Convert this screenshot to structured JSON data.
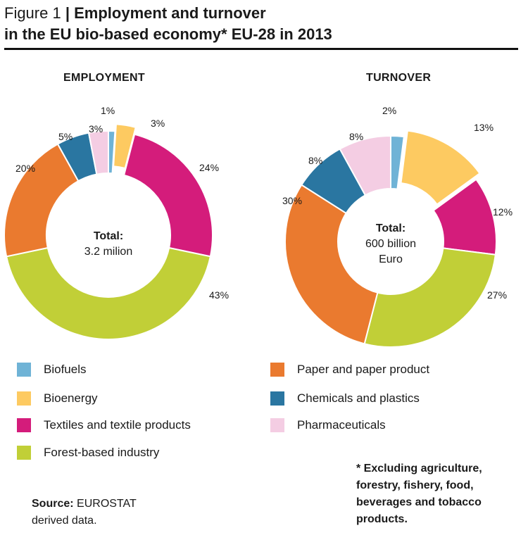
{
  "header": {
    "figure_label": "Figure 1",
    "separator": "|",
    "title_part1": "Employment and turnover",
    "title_part2": "in the EU bio-based economy* EU-28 in 2013"
  },
  "colors": {
    "Biofuels": "#6fb3d6",
    "Bioenergy": "#fdca61",
    "Textiles and textile products": "#d41c7b",
    "Forest-based industry": "#c1cf37",
    "Paper and paper product": "#ea7a2f",
    "Chemicals and plastics": "#2a76a1",
    "Pharmaceuticals": "#f4cde3"
  },
  "chart_data": [
    {
      "type": "pie",
      "title": "EMPLOYMENT",
      "center_label": "Total:",
      "center_value": "3.2 milion",
      "categories": [
        "Biofuels",
        "Bioenergy",
        "Textiles and textile products",
        "Forest-based industry",
        "Paper and paper product",
        "Chemicals and plastics",
        "Pharmaceuticals"
      ],
      "values": [
        1,
        3,
        24,
        43,
        20,
        5,
        3
      ],
      "labels": [
        "1%",
        "3%",
        "24%",
        "43%",
        "20%",
        "5%",
        "3%"
      ],
      "exploded": [
        "Bioenergy"
      ]
    },
    {
      "type": "pie",
      "title": "TURNOVER",
      "center_label": "Total:",
      "center_value": "600 billion",
      "center_value2": "Euro",
      "categories": [
        "Biofuels",
        "Bioenergy",
        "Textiles and textile products",
        "Forest-based industry",
        "Paper and paper product",
        "Chemicals and plastics",
        "Pharmaceuticals"
      ],
      "values": [
        2,
        13,
        12,
        27,
        30,
        8,
        8
      ],
      "labels": [
        "2%",
        "13%",
        "12%",
        "27%",
        "30%",
        "8%",
        "8%"
      ],
      "exploded": [
        "Bioenergy"
      ]
    }
  ],
  "legend": [
    "Biofuels",
    "Bioenergy",
    "Textiles and textile products",
    "Forest-based industry",
    "Paper and paper product",
    "Chemicals and plastics",
    "Pharmaceuticals"
  ],
  "source": {
    "label": "Source:",
    "text": "EUROSTAT",
    "text2": "derived data."
  },
  "footnote": [
    "* Excluding agriculture,",
    "forestry, fishery, food,",
    "beverages and tobacco",
    "products."
  ]
}
